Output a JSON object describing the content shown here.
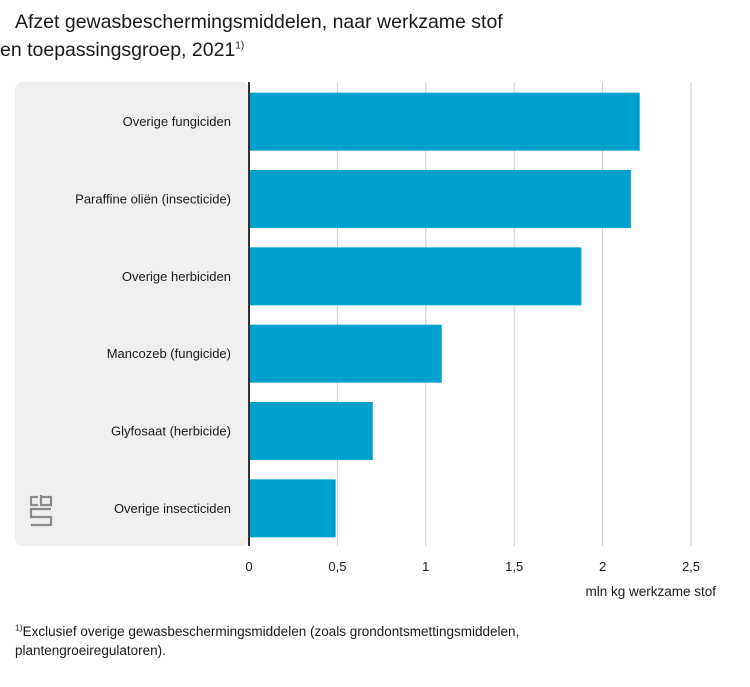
{
  "title": {
    "line1": "Afzet gewasbeschermingsmiddelen, naar werkzame stof",
    "line2": "en toepassingsgroep, 2021",
    "sup": "1)"
  },
  "footnote": {
    "sup": "1)",
    "text": "Exclusief overige gewasbeschermingsmiddelen (zoals grondontsmettingsmiddelen, plantengroeiregulatoren)."
  },
  "logo": {
    "text": "cbs"
  },
  "colors": {
    "bar": "#00a1cd",
    "panel": "#efefef",
    "grid": "#cccccc",
    "axis": "#333333"
  },
  "chart_data": {
    "type": "bar",
    "orientation": "horizontal",
    "categories": [
      "Overige fungiciden",
      "Paraffine oliën (insecticide)",
      "Overige herbiciden",
      "Mancozeb (fungicide)",
      "Glyfosaat (herbicide)",
      "Overige insecticiden"
    ],
    "values": [
      2.21,
      2.16,
      1.88,
      1.09,
      0.7,
      0.49
    ],
    "xlabel": "mln kg werkzame stof",
    "ylabel": "",
    "xlim": [
      0,
      2.5
    ],
    "ticks": [
      0,
      0.5,
      1,
      1.5,
      2,
      2.5
    ],
    "tick_labels": [
      "0",
      "0,5",
      "1",
      "1,5",
      "2",
      "2,5"
    ],
    "grid": true,
    "legend": "none"
  }
}
